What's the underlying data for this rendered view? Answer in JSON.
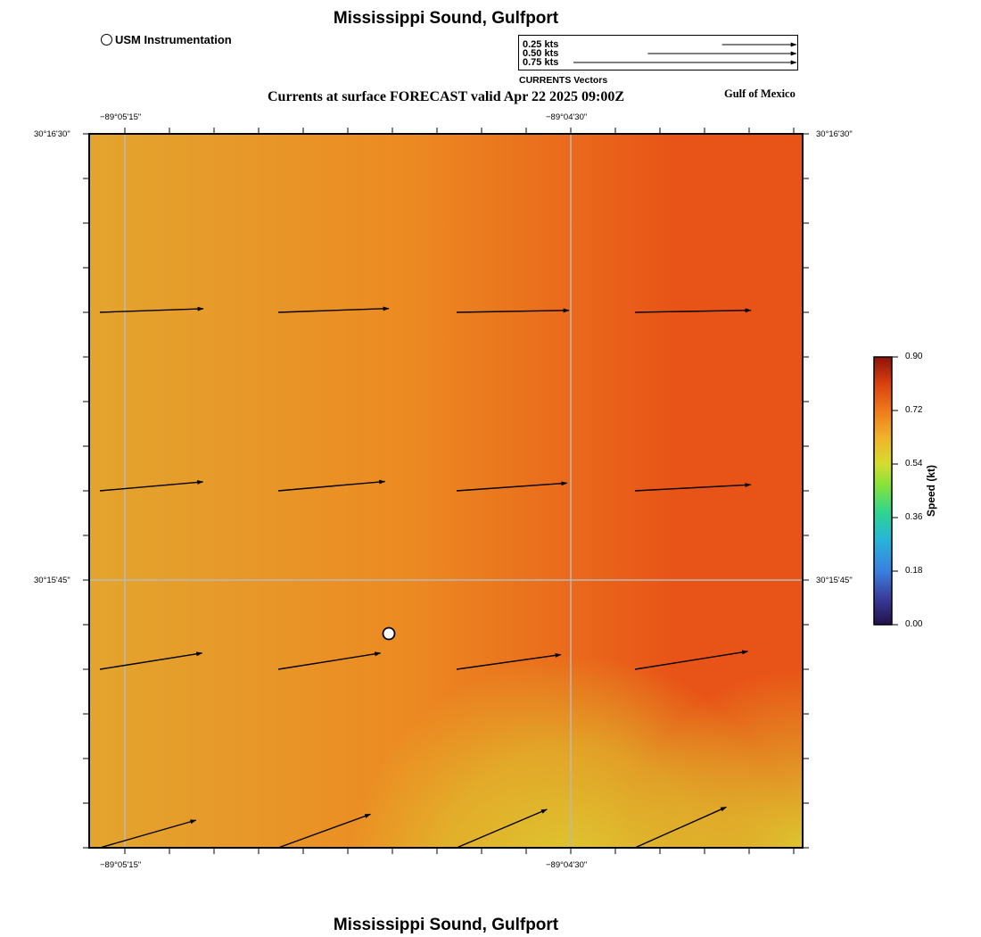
{
  "header": {
    "title": "Mississippi Sound, Gulfport",
    "subtitle": "Currents at surface FORECAST valid Apr 22 2025 09:00Z",
    "region": "Gulf of Mexico"
  },
  "footer": {
    "title": "Mississippi Sound, Gulfport"
  },
  "legend": {
    "station_label": "USM Instrumentation",
    "vector_caption": "CURRENTS Vectors",
    "vector_scale": [
      {
        "label": "0.25 kts",
        "speed": 0.25
      },
      {
        "label": "0.50 kts",
        "speed": 0.5
      },
      {
        "label": "0.75 kts",
        "speed": 0.75
      }
    ]
  },
  "axes": {
    "top_lon": [
      "−89°05'15\"",
      "−89°04'30\""
    ],
    "bottom_lon": [
      "−89°05'15\"",
      "−89°04'30\""
    ],
    "left_lat": [
      "30°16'30\"",
      "30°15'45\""
    ],
    "right_lat": [
      "30°16'30\"",
      "30°15'45\""
    ]
  },
  "colorbar": {
    "title": "Speed (kt)",
    "min": 0.0,
    "max": 0.9,
    "ticks": [
      "0.00",
      "0.18",
      "0.36",
      "0.54",
      "0.72",
      "0.90"
    ]
  },
  "colors": {
    "field_west": "#e3a52e",
    "field_mid": "#ec8a22",
    "field_east": "#e85417",
    "field_south": "#dcd232",
    "grid": "#b9b9b9",
    "arrow": "#000000"
  },
  "currents": [
    {
      "row": 1,
      "col": 1,
      "speed": 0.58,
      "direction_deg": 88
    },
    {
      "row": 1,
      "col": 2,
      "speed": 0.62,
      "direction_deg": 88
    },
    {
      "row": 1,
      "col": 3,
      "speed": 0.63,
      "direction_deg": 89
    },
    {
      "row": 1,
      "col": 4,
      "speed": 0.65,
      "direction_deg": 89
    },
    {
      "row": 2,
      "col": 1,
      "speed": 0.58,
      "direction_deg": 85
    },
    {
      "row": 2,
      "col": 2,
      "speed": 0.6,
      "direction_deg": 85
    },
    {
      "row": 2,
      "col": 3,
      "speed": 0.62,
      "direction_deg": 86
    },
    {
      "row": 2,
      "col": 4,
      "speed": 0.65,
      "direction_deg": 87
    },
    {
      "row": 3,
      "col": 1,
      "speed": 0.58,
      "direction_deg": 81
    },
    {
      "row": 3,
      "col": 2,
      "speed": 0.58,
      "direction_deg": 81
    },
    {
      "row": 3,
      "col": 3,
      "speed": 0.59,
      "direction_deg": 82
    },
    {
      "row": 3,
      "col": 4,
      "speed": 0.64,
      "direction_deg": 81
    },
    {
      "row": 4,
      "col": 1,
      "speed": 0.56,
      "direction_deg": 74
    },
    {
      "row": 4,
      "col": 2,
      "speed": 0.55,
      "direction_deg": 70
    },
    {
      "row": 4,
      "col": 3,
      "speed": 0.55,
      "direction_deg": 67
    },
    {
      "row": 4,
      "col": 4,
      "speed": 0.56,
      "direction_deg": 66
    }
  ]
}
